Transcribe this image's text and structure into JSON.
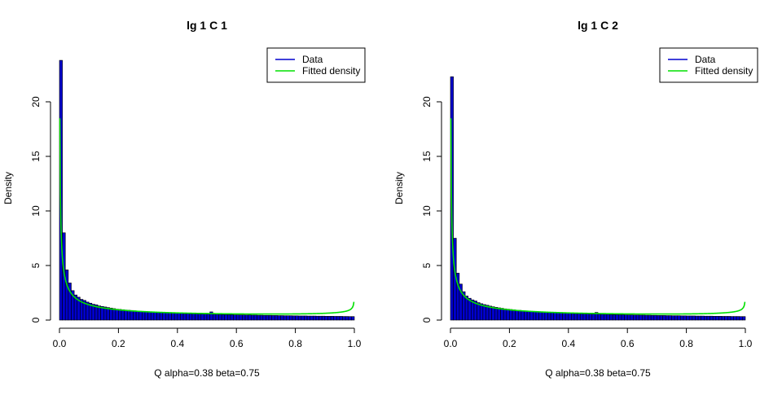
{
  "chart_data": [
    {
      "type": "bar",
      "title": "lg 1 C 1",
      "xlabel": "Q alpha=0.38 beta=0.75",
      "ylabel": "Density",
      "xlim": [
        0,
        1
      ],
      "ylim": [
        0,
        24
      ],
      "xticks": [
        "0.0",
        "0.2",
        "0.4",
        "0.6",
        "0.8",
        "1.0"
      ],
      "yticks": [
        "0",
        "5",
        "10",
        "15",
        "20"
      ],
      "legend_position": "top-right",
      "bin_width": 0.01,
      "series": [
        {
          "name": "Data",
          "type": "histogram",
          "color": "#0000cd",
          "values": [
            23.8,
            8.0,
            4.6,
            3.4,
            2.7,
            2.3,
            2.1,
            1.9,
            1.8,
            1.65,
            1.55,
            1.45,
            1.4,
            1.3,
            1.25,
            1.2,
            1.15,
            1.1,
            1.05,
            1.0,
            0.98,
            0.95,
            0.92,
            0.9,
            0.88,
            0.85,
            0.83,
            0.8,
            0.78,
            0.78,
            0.75,
            0.73,
            0.72,
            0.7,
            0.7,
            0.68,
            0.67,
            0.66,
            0.65,
            0.64,
            0.63,
            0.62,
            0.6,
            0.6,
            0.58,
            0.58,
            0.57,
            0.56,
            0.55,
            0.55,
            0.54,
            0.75,
            0.53,
            0.52,
            0.52,
            0.51,
            0.5,
            0.5,
            0.5,
            0.48,
            0.48,
            0.47,
            0.47,
            0.46,
            0.46,
            0.45,
            0.45,
            0.44,
            0.44,
            0.43,
            0.43,
            0.43,
            0.42,
            0.42,
            0.41,
            0.41,
            0.4,
            0.4,
            0.4,
            0.39,
            0.39,
            0.38,
            0.38,
            0.38,
            0.37,
            0.37,
            0.37,
            0.36,
            0.36,
            0.36,
            0.35,
            0.35,
            0.35,
            0.34,
            0.34,
            0.34,
            0.33,
            0.33,
            0.32,
            0.32
          ]
        },
        {
          "name": "Fitted density",
          "type": "beta_density",
          "color": "#00e000",
          "alpha": 0.38,
          "beta": 0.75
        }
      ],
      "legend": [
        {
          "label": "Data",
          "color": "#0000cd"
        },
        {
          "label": "Fitted density",
          "color": "#00e000"
        }
      ]
    },
    {
      "type": "bar",
      "title": "lg 1 C 2",
      "xlabel": "Q alpha=0.38 beta=0.75",
      "ylabel": "Density",
      "xlim": [
        0,
        1
      ],
      "ylim": [
        0,
        23
      ],
      "xticks": [
        "0.0",
        "0.2",
        "0.4",
        "0.6",
        "0.8",
        "1.0"
      ],
      "yticks": [
        "0",
        "5",
        "10",
        "15",
        "20"
      ],
      "legend_position": "top-right",
      "bin_width": 0.01,
      "series": [
        {
          "name": "Data",
          "type": "histogram",
          "color": "#0000cd",
          "values": [
            22.3,
            7.5,
            4.3,
            3.3,
            2.6,
            2.2,
            2.0,
            1.85,
            1.75,
            1.6,
            1.5,
            1.42,
            1.36,
            1.28,
            1.22,
            1.17,
            1.12,
            1.08,
            1.03,
            1.0,
            0.97,
            0.94,
            0.91,
            0.89,
            0.87,
            0.84,
            0.82,
            0.8,
            0.78,
            0.77,
            0.75,
            0.73,
            0.71,
            0.7,
            0.69,
            0.68,
            0.67,
            0.65,
            0.64,
            0.63,
            0.62,
            0.61,
            0.6,
            0.59,
            0.58,
            0.57,
            0.57,
            0.56,
            0.55,
            0.7,
            0.54,
            0.53,
            0.52,
            0.52,
            0.51,
            0.5,
            0.5,
            0.49,
            0.49,
            0.48,
            0.47,
            0.47,
            0.46,
            0.46,
            0.45,
            0.45,
            0.44,
            0.44,
            0.43,
            0.43,
            0.42,
            0.42,
            0.42,
            0.41,
            0.41,
            0.4,
            0.4,
            0.4,
            0.39,
            0.39,
            0.38,
            0.38,
            0.38,
            0.37,
            0.37,
            0.37,
            0.36,
            0.36,
            0.36,
            0.35,
            0.35,
            0.35,
            0.34,
            0.34,
            0.34,
            0.33,
            0.33,
            0.33,
            0.32,
            0.32
          ]
        },
        {
          "name": "Fitted density",
          "type": "beta_density",
          "color": "#00e000",
          "alpha": 0.38,
          "beta": 0.75
        }
      ],
      "legend": [
        {
          "label": "Data",
          "color": "#0000cd"
        },
        {
          "label": "Fitted density",
          "color": "#00e000"
        }
      ]
    }
  ]
}
